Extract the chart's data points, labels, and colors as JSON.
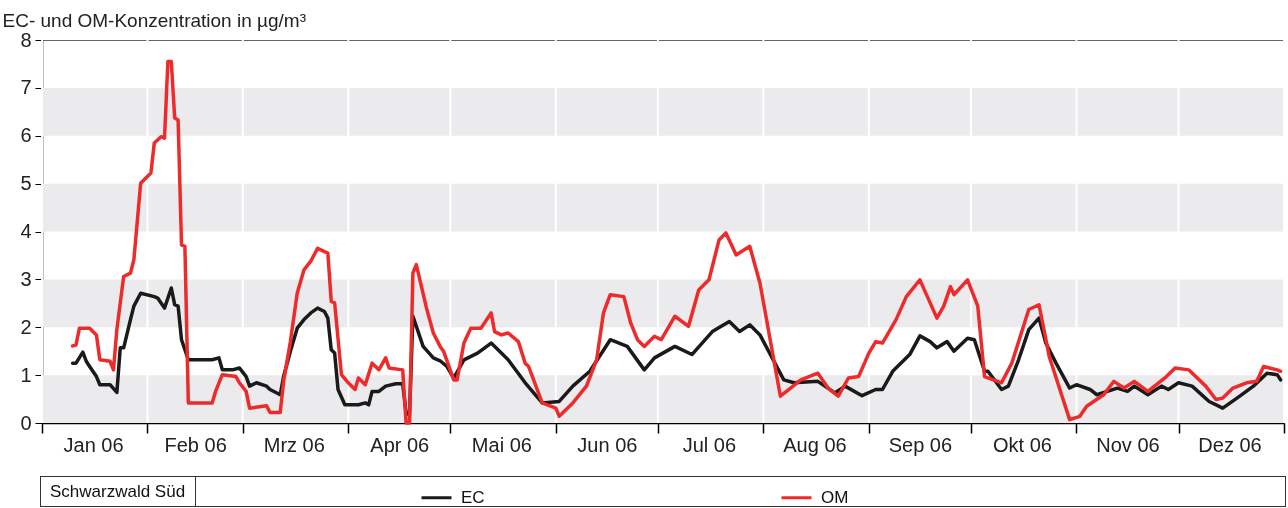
{
  "chart_data": {
    "type": "line",
    "ylabel": "EC- und OM-Konzentration in µg/m³",
    "annotations": [
      "Schwarzwald Süd"
    ],
    "xlim": [
      "2006-01-01",
      "2007-01-01"
    ],
    "xticks": [
      {
        "value": "2006-01-01",
        "label": null
      },
      {
        "value": "2006-01-16",
        "label": "Jan 06"
      },
      {
        "value": "2006-02-01",
        "label": null
      },
      {
        "value": "2006-02-15",
        "label": "Feb 06"
      },
      {
        "value": "2006-03-01",
        "label": null
      },
      {
        "value": "2006-03-16",
        "label": "Mrz 06"
      },
      {
        "value": "2006-04-01",
        "label": null
      },
      {
        "value": "2006-04-16",
        "label": "Apr 06"
      },
      {
        "value": "2006-05-01",
        "label": null
      },
      {
        "value": "2006-05-16",
        "label": "Mai 06"
      },
      {
        "value": "2006-06-01",
        "label": null
      },
      {
        "value": "2006-06-16",
        "label": "Jun 06"
      },
      {
        "value": "2006-07-01",
        "label": null
      },
      {
        "value": "2006-07-16",
        "label": "Jul 06"
      },
      {
        "value": "2006-08-01",
        "label": null
      },
      {
        "value": "2006-08-16",
        "label": "Aug 06"
      },
      {
        "value": "2006-09-01",
        "label": null
      },
      {
        "value": "2006-09-16",
        "label": "Sep 06"
      },
      {
        "value": "2006-10-01",
        "label": null
      },
      {
        "value": "2006-10-16",
        "label": "Okt 06"
      },
      {
        "value": "2006-11-01",
        "label": null
      },
      {
        "value": "2006-11-16",
        "label": "Nov 06"
      },
      {
        "value": "2006-12-01",
        "label": null
      },
      {
        "value": "2006-12-16",
        "label": "Dez 06"
      },
      {
        "value": "2007-01-01",
        "label": null
      }
    ],
    "ylim": [
      0,
      8
    ],
    "yticks": [
      0,
      1,
      2,
      3,
      4,
      5,
      6,
      7,
      8
    ],
    "grid": "x",
    "legend": "bottom",
    "bands": [
      {
        "axis": "y",
        "from": 0,
        "to": 1,
        "color": "#ebebee"
      },
      {
        "axis": "y",
        "from": 2,
        "to": 3,
        "color": "#ebebee"
      },
      {
        "axis": "y",
        "from": 4,
        "to": 5,
        "color": "#ebebee"
      },
      {
        "axis": "y",
        "from": 6,
        "to": 7,
        "color": "#ebebee"
      }
    ],
    "series": [
      {
        "name": "EC",
        "color": "#1a1a1a",
        "x": [
          "2006-01-10",
          "2006-01-11",
          "2006-01-13",
          "2006-01-14",
          "2006-01-15",
          "2006-01-17",
          "2006-01-18",
          "2006-01-21",
          "2006-01-23",
          "2006-01-24",
          "2006-01-25",
          "2006-01-27",
          "2006-01-28",
          "2006-01-30",
          "2006-02-03",
          "2006-02-04",
          "2006-02-06",
          "2006-02-08",
          "2006-02-09",
          "2006-02-10",
          "2006-02-11",
          "2006-02-13",
          "2006-02-20",
          "2006-02-22",
          "2006-02-23",
          "2006-02-26",
          "2006-02-28",
          "2006-03-02",
          "2006-03-03",
          "2006-03-05",
          "2006-03-08",
          "2006-03-09",
          "2006-03-12",
          "2006-03-13",
          "2006-03-15",
          "2006-03-17",
          "2006-03-19",
          "2006-03-21",
          "2006-03-23",
          "2006-03-25",
          "2006-03-26",
          "2006-03-27",
          "2006-03-28",
          "2006-03-29",
          "2006-03-31",
          "2006-04-04",
          "2006-04-06",
          "2006-04-07",
          "2006-04-08",
          "2006-04-10",
          "2006-04-12",
          "2006-04-15",
          "2006-04-17",
          "2006-04-18",
          "2006-04-19",
          "2006-04-20",
          "2006-04-23",
          "2006-04-26",
          "2006-04-28",
          "2006-04-30",
          "2006-05-02",
          "2006-05-05",
          "2006-05-09",
          "2006-05-13",
          "2006-05-18",
          "2006-05-23",
          "2006-05-28",
          "2006-06-02",
          "2006-06-06",
          "2006-06-11",
          "2006-06-17",
          "2006-06-22",
          "2006-06-27",
          "2006-06-30",
          "2006-07-06",
          "2006-07-11",
          "2006-07-17",
          "2006-07-22",
          "2006-07-25",
          "2006-07-28",
          "2006-07-31",
          "2006-08-07",
          "2006-08-10",
          "2006-08-17",
          "2006-08-22",
          "2006-08-25",
          "2006-08-30",
          "2006-09-03",
          "2006-09-05",
          "2006-09-08",
          "2006-09-13",
          "2006-09-16",
          "2006-09-19",
          "2006-09-21",
          "2006-09-24",
          "2006-09-26",
          "2006-09-30",
          "2006-10-02",
          "2006-10-05",
          "2006-10-06",
          "2006-10-10",
          "2006-10-12",
          "2006-10-15",
          "2006-10-18",
          "2006-10-21",
          "2006-10-23",
          "2006-10-26",
          "2006-10-30",
          "2006-11-01",
          "2006-11-05",
          "2006-11-07",
          "2006-11-13",
          "2006-11-16",
          "2006-11-18",
          "2006-11-22",
          "2006-11-26",
          "2006-11-28",
          "2006-12-01",
          "2006-12-05",
          "2006-12-10",
          "2006-12-14",
          "2006-12-19",
          "2006-12-23",
          "2006-12-27",
          "2006-12-30",
          "2006-12-31"
        ],
        "values": [
          1.25,
          1.25,
          1.48,
          1.29,
          1.18,
          0.97,
          0.8,
          0.8,
          0.64,
          1.57,
          1.57,
          2.16,
          2.44,
          2.71,
          2.64,
          2.61,
          2.4,
          2.82,
          2.47,
          2.44,
          1.74,
          1.32,
          1.32,
          1.36,
          1.11,
          1.11,
          1.15,
          0.97,
          0.77,
          0.84,
          0.77,
          0.7,
          0.59,
          0.97,
          1.5,
          1.98,
          2.16,
          2.3,
          2.4,
          2.33,
          2.19,
          1.53,
          1.46,
          0.7,
          0.38,
          0.38,
          0.42,
          0.38,
          0.66,
          0.66,
          0.77,
          0.82,
          0.82,
          0.21,
          0.17,
          2.23,
          1.6,
          1.36,
          1.3,
          1.18,
          0.94,
          1.32,
          1.46,
          1.67,
          1.32,
          0.84,
          0.42,
          0.45,
          0.77,
          1.08,
          1.74,
          1.6,
          1.11,
          1.36,
          1.6,
          1.43,
          1.91,
          2.12,
          1.91,
          2.05,
          1.84,
          0.9,
          0.84,
          0.87,
          0.63,
          0.77,
          0.57,
          0.7,
          0.7,
          1.08,
          1.43,
          1.82,
          1.7,
          1.57,
          1.7,
          1.5,
          1.77,
          1.74,
          1.08,
          1.08,
          0.7,
          0.77,
          1.32,
          1.95,
          2.19,
          1.67,
          1.25,
          0.73,
          0.8,
          0.7,
          0.59,
          0.73,
          0.66,
          0.77,
          0.59,
          0.77,
          0.7,
          0.84,
          0.77,
          0.45,
          0.31,
          0.56,
          0.77,
          1.04,
          1.01,
          0.9
        ]
      },
      {
        "name": "OM",
        "color": "#ee2a2a",
        "x": [
          "2006-01-10",
          "2006-01-11",
          "2006-01-12",
          "2006-01-15",
          "2006-01-17",
          "2006-01-18",
          "2006-01-21",
          "2006-01-22",
          "2006-01-23",
          "2006-01-25",
          "2006-01-27",
          "2006-01-28",
          "2006-01-30",
          "2006-02-02",
          "2006-02-03",
          "2006-02-05",
          "2006-02-06",
          "2006-02-07",
          "2006-02-08",
          "2006-02-09",
          "2006-02-10",
          "2006-02-11",
          "2006-02-12",
          "2006-02-13",
          "2006-02-20",
          "2006-02-21",
          "2006-02-23",
          "2006-02-27",
          "2006-02-28",
          "2006-03-02",
          "2006-03-03",
          "2006-03-08",
          "2006-03-09",
          "2006-03-12",
          "2006-03-13",
          "2006-03-15",
          "2006-03-17",
          "2006-03-19",
          "2006-03-21",
          "2006-03-23",
          "2006-03-25",
          "2006-03-26",
          "2006-03-27",
          "2006-03-28",
          "2006-03-30",
          "2006-04-01",
          "2006-04-03",
          "2006-04-04",
          "2006-04-06",
          "2006-04-08",
          "2006-04-10",
          "2006-04-12",
          "2006-04-13",
          "2006-04-17",
          "2006-04-18",
          "2006-04-19",
          "2006-04-20",
          "2006-04-21",
          "2006-04-24",
          "2006-04-26",
          "2006-04-28",
          "2006-04-29",
          "2006-05-02",
          "2006-05-03",
          "2006-05-05",
          "2006-05-07",
          "2006-05-10",
          "2006-05-13",
          "2006-05-14",
          "2006-05-16",
          "2006-05-18",
          "2006-05-21",
          "2006-05-23",
          "2006-05-24",
          "2006-05-26",
          "2006-05-28",
          "2006-06-01",
          "2006-06-02",
          "2006-06-06",
          "2006-06-10",
          "2006-06-13",
          "2006-06-15",
          "2006-06-17",
          "2006-06-21",
          "2006-06-23",
          "2006-06-25",
          "2006-06-27",
          "2006-06-30",
          "2006-07-02",
          "2006-07-06",
          "2006-07-10",
          "2006-07-13",
          "2006-07-16",
          "2006-07-19",
          "2006-07-21",
          "2006-07-24",
          "2006-07-28",
          "2006-07-31",
          "2006-08-03",
          "2006-08-06",
          "2006-08-09",
          "2006-08-12",
          "2006-08-17",
          "2006-08-20",
          "2006-08-23",
          "2006-08-26",
          "2006-08-29",
          "2006-09-01",
          "2006-09-03",
          "2006-09-05",
          "2006-09-09",
          "2006-09-12",
          "2006-09-16",
          "2006-09-21",
          "2006-09-23",
          "2006-09-25",
          "2006-09-26",
          "2006-09-30",
          "2006-10-03",
          "2006-10-05",
          "2006-10-10",
          "2006-10-13",
          "2006-10-18",
          "2006-10-21",
          "2006-10-24",
          "2006-10-30",
          "2006-11-02",
          "2006-11-04",
          "2006-11-09",
          "2006-11-12",
          "2006-11-15",
          "2006-11-18",
          "2006-11-22",
          "2006-11-27",
          "2006-11-30",
          "2006-12-04",
          "2006-12-09",
          "2006-12-12",
          "2006-12-14",
          "2006-12-17",
          "2006-12-21",
          "2006-12-24",
          "2006-12-26",
          "2006-12-30",
          "2006-12-31"
        ],
        "values": [
          1.61,
          1.63,
          1.98,
          1.98,
          1.84,
          1.32,
          1.29,
          1.11,
          1.95,
          3.06,
          3.13,
          3.41,
          5.01,
          5.22,
          5.85,
          5.98,
          5.95,
          7.55,
          7.55,
          6.37,
          6.33,
          3.72,
          3.69,
          0.42,
          0.42,
          0.66,
          1.01,
          0.97,
          0.84,
          0.66,
          0.31,
          0.36,
          0.22,
          0.22,
          0.87,
          1.7,
          2.71,
          3.2,
          3.38,
          3.65,
          3.58,
          3.55,
          2.54,
          2.51,
          1.01,
          0.84,
          0.7,
          0.94,
          0.8,
          1.25,
          1.11,
          1.36,
          1.15,
          1.11,
          0,
          0,
          3.13,
          3.31,
          2.4,
          1.88,
          1.6,
          1.5,
          0.9,
          0.9,
          1.67,
          1.98,
          1.98,
          2.3,
          1.91,
          1.84,
          1.88,
          1.7,
          1.25,
          1.18,
          0.8,
          0.42,
          0.31,
          0.14,
          0.42,
          0.77,
          1.32,
          2.3,
          2.68,
          2.64,
          2.09,
          1.74,
          1.6,
          1.81,
          1.74,
          2.23,
          2.02,
          2.78,
          2.99,
          3.83,
          3.97,
          3.51,
          3.69,
          2.92,
          1.74,
          0.56,
          0.73,
          0.9,
          1.04,
          0.73,
          0.56,
          0.94,
          0.97,
          1.46,
          1.7,
          1.67,
          2.16,
          2.64,
          2.99,
          2.19,
          2.44,
          2.85,
          2.68,
          2.99,
          2.44,
          0.97,
          0.84,
          1.25,
          2.37,
          2.47,
          1.39,
          0.07,
          0.14,
          0.35,
          0.59,
          0.87,
          0.73,
          0.87,
          0.66,
          0.94,
          1.15,
          1.11,
          0.77,
          0.49,
          0.52,
          0.73,
          0.84,
          0.87,
          1.18,
          1.11,
          1.08
        ]
      }
    ]
  }
}
